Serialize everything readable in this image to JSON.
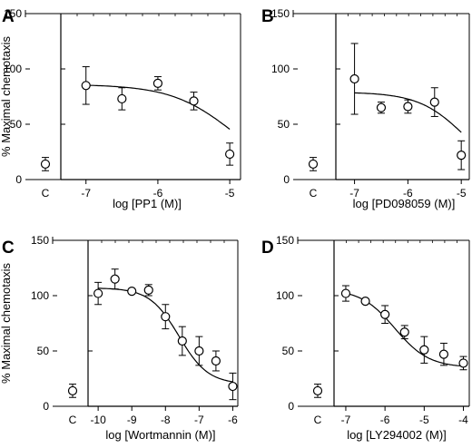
{
  "figure": {
    "ylabel": "% Maximal chemotaxis"
  },
  "chart_data": [
    {
      "type": "scatter",
      "panel": "A",
      "xlabel": "log [PP1 (M)]",
      "ylabel": "% Maximal chemotaxis",
      "control_label": "C",
      "control": {
        "y": 14,
        "err": 6
      },
      "xlim": [
        -7.35,
        -4.85
      ],
      "ylim": [
        0,
        150
      ],
      "xticks": [
        -7,
        -6,
        -5
      ],
      "yticks": [
        0,
        50,
        100,
        150
      ],
      "points": [
        {
          "x": -7.0,
          "y": 85,
          "err": 17
        },
        {
          "x": -6.5,
          "y": 73,
          "err": 10
        },
        {
          "x": -6.0,
          "y": 87,
          "err": 6
        },
        {
          "x": -5.5,
          "y": 71,
          "err": 8
        },
        {
          "x": -5.0,
          "y": 23,
          "err": 10
        }
      ],
      "fit": {
        "top": 86,
        "bottom": 0,
        "logIC50": -4.95,
        "hill": 1
      }
    },
    {
      "type": "scatter",
      "panel": "B",
      "xlabel": "log [PD098059 (M)]",
      "ylabel": "",
      "control_label": "C",
      "control": {
        "y": 14,
        "err": 6
      },
      "xlim": [
        -7.35,
        -4.85
      ],
      "ylim": [
        0,
        150
      ],
      "xticks": [
        -7,
        -6,
        -5
      ],
      "yticks": [
        0,
        50,
        100,
        150
      ],
      "points": [
        {
          "x": -7.0,
          "y": 91,
          "err": 32
        },
        {
          "x": -6.5,
          "y": 65,
          "err": 5
        },
        {
          "x": -6.0,
          "y": 66,
          "err": 6
        },
        {
          "x": -5.5,
          "y": 70,
          "err": 13
        },
        {
          "x": -5.0,
          "y": 22,
          "err": 13
        }
      ],
      "fit": {
        "top": 79,
        "bottom": 0,
        "logIC50": -4.93,
        "hill": 1
      }
    },
    {
      "type": "scatter",
      "panel": "C",
      "xlabel": "log [Wortmannin (M)]",
      "ylabel": "% Maximal chemotaxis",
      "control_label": "C",
      "control": {
        "y": 14,
        "err": 6
      },
      "xlim": [
        -10.3,
        -5.85
      ],
      "ylim": [
        0,
        150
      ],
      "xticks": [
        -10,
        -9,
        -8,
        -7,
        -6
      ],
      "yticks": [
        0,
        50,
        100,
        150
      ],
      "points": [
        {
          "x": -10.0,
          "y": 102,
          "err": 10
        },
        {
          "x": -9.5,
          "y": 115,
          "err": 9
        },
        {
          "x": -9.0,
          "y": 104,
          "err": 0
        },
        {
          "x": -8.5,
          "y": 105,
          "err": 5
        },
        {
          "x": -8.0,
          "y": 81,
          "err": 11
        },
        {
          "x": -7.5,
          "y": 59,
          "err": 13
        },
        {
          "x": -7.0,
          "y": 50,
          "err": 13
        },
        {
          "x": -6.5,
          "y": 41,
          "err": 9
        },
        {
          "x": -6.0,
          "y": 18,
          "err": 12
        }
      ],
      "fit": {
        "top": 107,
        "bottom": 20,
        "logIC50": -7.6,
        "hill": 1
      }
    },
    {
      "type": "scatter",
      "panel": "D",
      "xlabel": "log [LY294002 (M)]",
      "ylabel": "",
      "control_label": "C",
      "control": {
        "y": 14,
        "err": 6
      },
      "xlim": [
        -7.3,
        -3.85
      ],
      "ylim": [
        0,
        150
      ],
      "xticks": [
        -7,
        -6,
        -5,
        -4
      ],
      "yticks": [
        0,
        50,
        100,
        150
      ],
      "points": [
        {
          "x": -7.0,
          "y": 102,
          "err": 7
        },
        {
          "x": -6.5,
          "y": 95,
          "err": 0
        },
        {
          "x": -6.0,
          "y": 83,
          "err": 8
        },
        {
          "x": -5.5,
          "y": 67,
          "err": 6
        },
        {
          "x": -5.0,
          "y": 51,
          "err": 12
        },
        {
          "x": -4.5,
          "y": 47,
          "err": 10
        },
        {
          "x": -4.0,
          "y": 39,
          "err": 6
        }
      ],
      "fit": {
        "top": 106,
        "bottom": 35,
        "logIC50": -5.75,
        "hill": 1
      }
    }
  ]
}
